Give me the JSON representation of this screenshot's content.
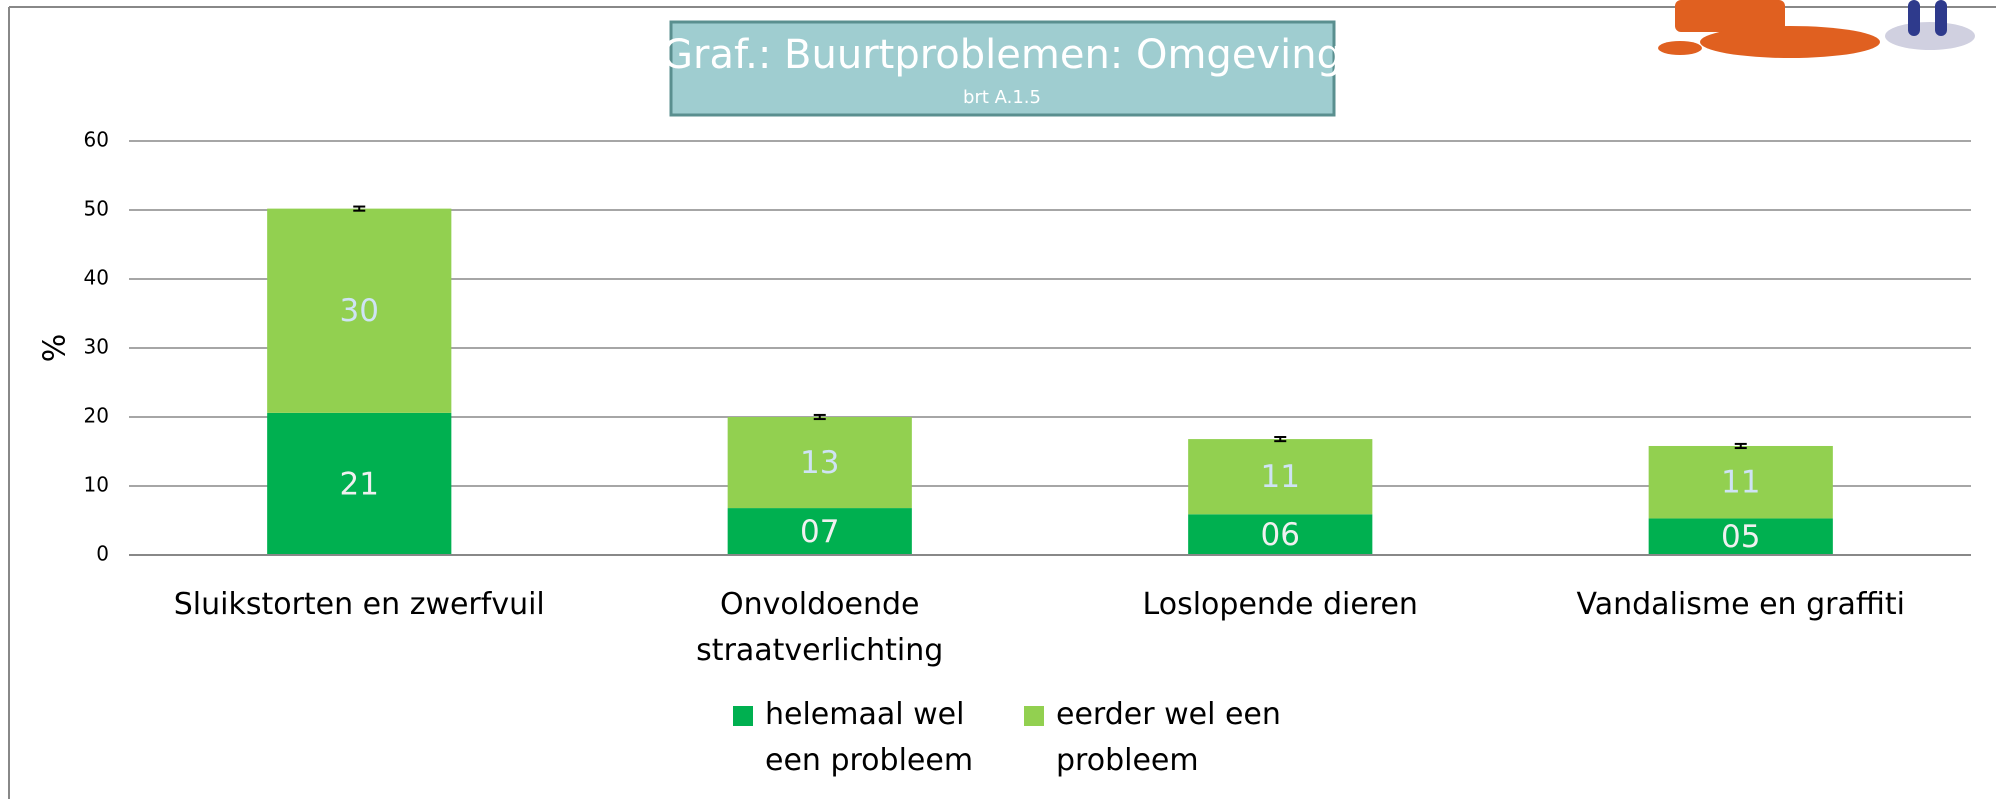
{
  "chart_data": {
    "type": "stacked-bar",
    "title": "Graf.: Buurtproblemen: Omgeving",
    "subtitle": "brt A.1.5",
    "y_label": "%",
    "categories": [
      "Sluikstorten en zwerfvuil",
      "Onvoldoende straatverlichting",
      "Loslopende dieren",
      "Vandalisme en graffiti"
    ],
    "series": [
      {
        "name": "helemaal wel een probleem",
        "color": "#00b050",
        "values": [
          20.6,
          6.8,
          5.9,
          5.3
        ],
        "value_labels": [
          "21",
          "07",
          "06",
          "05"
        ]
      },
      {
        "name": "eerder wel een probleem",
        "color": "#92d050",
        "values": [
          29.6,
          13.2,
          10.9,
          10.5
        ],
        "value_labels": [
          "30",
          "13",
          "11",
          "11"
        ]
      }
    ],
    "errors": [
      0.3,
      0.3,
      0.3,
      0.3
    ],
    "ylim": [
      0,
      60
    ],
    "yticks": [
      0,
      10,
      20,
      30,
      40,
      50,
      60
    ],
    "grid": true,
    "legend": "bottom"
  }
}
